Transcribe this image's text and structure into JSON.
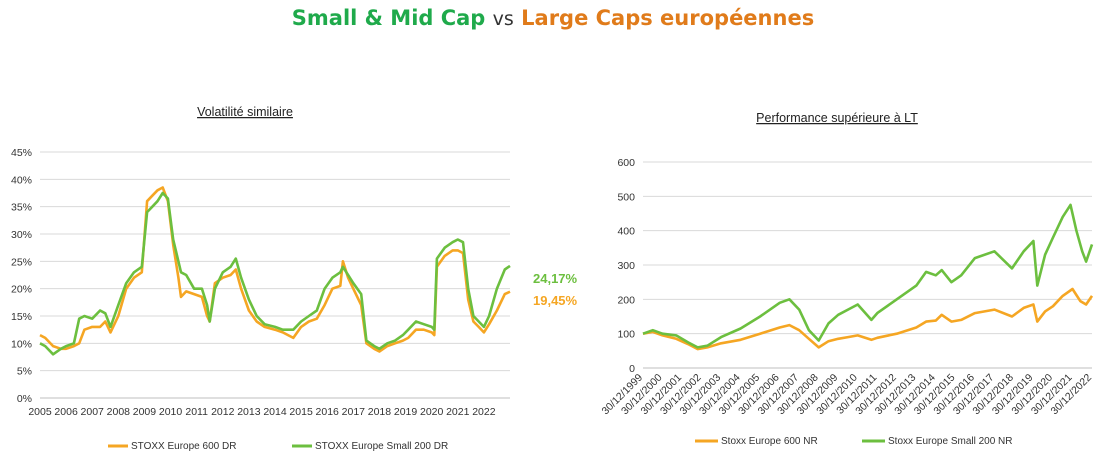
{
  "header": {
    "title_part1": "Small & Mid Cap",
    "title_vs": "vs",
    "title_part2": "Large Caps européennes"
  },
  "colors": {
    "green": "#6cbf3f",
    "orange": "#f5a623",
    "title_green": "#1faa4b",
    "title_orange": "#e07b1a"
  },
  "chart_data": [
    {
      "type": "line",
      "title": "Volatilité similaire",
      "ylim": [
        0,
        45
      ],
      "yticks": [
        "0%",
        "5%",
        "10%",
        "15%",
        "20%",
        "25%",
        "30%",
        "35%",
        "40%",
        "45%"
      ],
      "xticks": [
        "2005",
        "2006",
        "2007",
        "2008",
        "2009",
        "2010",
        "2011",
        "2012",
        "2013",
        "2014",
        "2015",
        "2016",
        "2017",
        "2018",
        "2019",
        "2020",
        "2021",
        "2022"
      ],
      "xlim": [
        2005,
        2023
      ],
      "grid": true,
      "legend": "bottom",
      "end_labels": [
        "24,17%",
        "19,45%"
      ],
      "series": [
        {
          "name": "STOXX Europe 600 DR",
          "color": "#f5a623",
          "points": [
            [
              2005.0,
              11.5
            ],
            [
              2005.2,
              11.0
            ],
            [
              2005.5,
              9.5
            ],
            [
              2005.8,
              9.0
            ],
            [
              2006.0,
              9.0
            ],
            [
              2006.3,
              9.5
            ],
            [
              2006.5,
              10.0
            ],
            [
              2006.7,
              12.5
            ],
            [
              2007.0,
              13.0
            ],
            [
              2007.3,
              13.0
            ],
            [
              2007.5,
              14.0
            ],
            [
              2007.7,
              12.0
            ],
            [
              2008.0,
              15.0
            ],
            [
              2008.3,
              20.0
            ],
            [
              2008.6,
              22.0
            ],
            [
              2008.9,
              23.0
            ],
            [
              2009.1,
              36.0
            ],
            [
              2009.3,
              37.0
            ],
            [
              2009.5,
              38.0
            ],
            [
              2009.7,
              38.5
            ],
            [
              2009.9,
              36.0
            ],
            [
              2010.1,
              28.0
            ],
            [
              2010.3,
              22.0
            ],
            [
              2010.4,
              18.5
            ],
            [
              2010.6,
              19.5
            ],
            [
              2010.9,
              19.0
            ],
            [
              2011.2,
              18.5
            ],
            [
              2011.4,
              15.0
            ],
            [
              2011.5,
              14.0
            ],
            [
              2011.7,
              21.0
            ],
            [
              2012.0,
              22.0
            ],
            [
              2012.3,
              22.5
            ],
            [
              2012.5,
              23.5
            ],
            [
              2012.7,
              20.0
            ],
            [
              2013.0,
              16.0
            ],
            [
              2013.3,
              14.0
            ],
            [
              2013.6,
              13.0
            ],
            [
              2014.0,
              12.5
            ],
            [
              2014.3,
              12.0
            ],
            [
              2014.7,
              11.0
            ],
            [
              2015.0,
              13.0
            ],
            [
              2015.3,
              14.0
            ],
            [
              2015.6,
              14.5
            ],
            [
              2015.9,
              17.0
            ],
            [
              2016.2,
              20.0
            ],
            [
              2016.5,
              20.5
            ],
            [
              2016.6,
              25.0
            ],
            [
              2016.8,
              22.0
            ],
            [
              2017.0,
              20.0
            ],
            [
              2017.3,
              17.0
            ],
            [
              2017.5,
              10.0
            ],
            [
              2017.8,
              9.0
            ],
            [
              2018.0,
              8.5
            ],
            [
              2018.3,
              9.5
            ],
            [
              2018.6,
              10.0
            ],
            [
              2018.9,
              10.5
            ],
            [
              2019.1,
              11.0
            ],
            [
              2019.4,
              12.5
            ],
            [
              2019.7,
              12.5
            ],
            [
              2020.0,
              12.0
            ],
            [
              2020.1,
              11.5
            ],
            [
              2020.2,
              24.0
            ],
            [
              2020.5,
              26.0
            ],
            [
              2020.8,
              27.0
            ],
            [
              2021.0,
              27.0
            ],
            [
              2021.2,
              26.5
            ],
            [
              2021.4,
              18.0
            ],
            [
              2021.6,
              14.0
            ],
            [
              2021.8,
              13.0
            ],
            [
              2022.0,
              12.0
            ],
            [
              2022.2,
              13.5
            ],
            [
              2022.5,
              16.0
            ],
            [
              2022.8,
              19.0
            ],
            [
              2023.0,
              19.45
            ]
          ]
        },
        {
          "name": "STOXX Europe Small 200 DR",
          "color": "#6cbf3f",
          "points": [
            [
              2005.0,
              10.0
            ],
            [
              2005.2,
              9.5
            ],
            [
              2005.5,
              8.0
            ],
            [
              2005.8,
              9.0
            ],
            [
              2006.0,
              9.5
            ],
            [
              2006.3,
              10.0
            ],
            [
              2006.5,
              14.5
            ],
            [
              2006.7,
              15.0
            ],
            [
              2007.0,
              14.5
            ],
            [
              2007.3,
              16.0
            ],
            [
              2007.5,
              15.5
            ],
            [
              2007.7,
              13.0
            ],
            [
              2008.0,
              17.0
            ],
            [
              2008.3,
              21.0
            ],
            [
              2008.6,
              23.0
            ],
            [
              2008.9,
              24.0
            ],
            [
              2009.1,
              34.0
            ],
            [
              2009.3,
              35.0
            ],
            [
              2009.5,
              36.0
            ],
            [
              2009.7,
              37.5
            ],
            [
              2009.9,
              36.5
            ],
            [
              2010.1,
              29.0
            ],
            [
              2010.3,
              25.0
            ],
            [
              2010.4,
              23.0
            ],
            [
              2010.6,
              22.5
            ],
            [
              2010.9,
              20.0
            ],
            [
              2011.2,
              20.0
            ],
            [
              2011.4,
              17.0
            ],
            [
              2011.5,
              14.0
            ],
            [
              2011.7,
              20.0
            ],
            [
              2012.0,
              23.0
            ],
            [
              2012.3,
              24.0
            ],
            [
              2012.5,
              25.5
            ],
            [
              2012.7,
              22.0
            ],
            [
              2013.0,
              18.0
            ],
            [
              2013.3,
              15.0
            ],
            [
              2013.6,
              13.5
            ],
            [
              2014.0,
              13.0
            ],
            [
              2014.3,
              12.5
            ],
            [
              2014.7,
              12.5
            ],
            [
              2015.0,
              14.0
            ],
            [
              2015.3,
              15.0
            ],
            [
              2015.6,
              16.0
            ],
            [
              2015.9,
              20.0
            ],
            [
              2016.2,
              22.0
            ],
            [
              2016.5,
              23.0
            ],
            [
              2016.6,
              24.0
            ],
            [
              2016.8,
              22.5
            ],
            [
              2017.0,
              21.0
            ],
            [
              2017.3,
              19.0
            ],
            [
              2017.5,
              10.5
            ],
            [
              2017.8,
              9.5
            ],
            [
              2018.0,
              9.0
            ],
            [
              2018.3,
              10.0
            ],
            [
              2018.6,
              10.5
            ],
            [
              2018.9,
              11.5
            ],
            [
              2019.1,
              12.5
            ],
            [
              2019.4,
              14.0
            ],
            [
              2019.7,
              13.5
            ],
            [
              2020.0,
              13.0
            ],
            [
              2020.1,
              12.5
            ],
            [
              2020.2,
              25.5
            ],
            [
              2020.5,
              27.5
            ],
            [
              2020.8,
              28.5
            ],
            [
              2021.0,
              29.0
            ],
            [
              2021.2,
              28.5
            ],
            [
              2021.4,
              20.0
            ],
            [
              2021.6,
              15.0
            ],
            [
              2021.8,
              14.0
            ],
            [
              2022.0,
              13.0
            ],
            [
              2022.2,
              15.0
            ],
            [
              2022.5,
              20.0
            ],
            [
              2022.8,
              23.5
            ],
            [
              2023.0,
              24.17
            ]
          ]
        }
      ]
    },
    {
      "type": "line",
      "title": "Performance supérieure à LT",
      "ylim": [
        0,
        600
      ],
      "yticks": [
        "0",
        "100",
        "200",
        "300",
        "400",
        "500",
        "600"
      ],
      "xticks": [
        "30/12/1999",
        "30/12/2000",
        "30/12/2001",
        "30/12/2002",
        "30/12/2003",
        "30/12/2004",
        "30/12/2005",
        "30/12/2006",
        "30/12/2007",
        "30/12/2008",
        "30/12/2009",
        "30/12/2010",
        "30/12/2011",
        "30/12/2012",
        "30/12/2013",
        "30/12/2014",
        "30/12/2015",
        "30/12/2016",
        "30/12/2017",
        "30/12/2018",
        "30/12/2019",
        "30/12/2020",
        "30/12/2021",
        "30/12/2022"
      ],
      "xlim": [
        2000,
        2023
      ],
      "grid": true,
      "legend": "bottom",
      "series": [
        {
          "name": "Stoxx Europe 600 NR",
          "color": "#f5a623",
          "points": [
            [
              2000.0,
              100
            ],
            [
              2000.5,
              105
            ],
            [
              2001.0,
              95
            ],
            [
              2001.7,
              85
            ],
            [
              2002.3,
              70
            ],
            [
              2002.8,
              55
            ],
            [
              2003.3,
              60
            ],
            [
              2004.0,
              72
            ],
            [
              2005.0,
              82
            ],
            [
              2006.0,
              100
            ],
            [
              2007.0,
              118
            ],
            [
              2007.5,
              125
            ],
            [
              2008.0,
              110
            ],
            [
              2008.5,
              85
            ],
            [
              2009.0,
              60
            ],
            [
              2009.5,
              78
            ],
            [
              2010.0,
              85
            ],
            [
              2010.5,
              90
            ],
            [
              2011.0,
              95
            ],
            [
              2011.7,
              82
            ],
            [
              2012.0,
              88
            ],
            [
              2013.0,
              100
            ],
            [
              2014.0,
              118
            ],
            [
              2014.5,
              135
            ],
            [
              2015.0,
              138
            ],
            [
              2015.3,
              155
            ],
            [
              2015.8,
              135
            ],
            [
              2016.3,
              140
            ],
            [
              2017.0,
              160
            ],
            [
              2018.0,
              170
            ],
            [
              2018.9,
              150
            ],
            [
              2019.5,
              175
            ],
            [
              2020.0,
              185
            ],
            [
              2020.2,
              135
            ],
            [
              2020.6,
              165
            ],
            [
              2021.0,
              180
            ],
            [
              2021.5,
              210
            ],
            [
              2022.0,
              230
            ],
            [
              2022.4,
              195
            ],
            [
              2022.7,
              185
            ],
            [
              2023.0,
              210
            ]
          ]
        },
        {
          "name": "Stoxx Europe Small 200 NR",
          "color": "#6cbf3f",
          "points": [
            [
              2000.0,
              100
            ],
            [
              2000.5,
              110
            ],
            [
              2001.0,
              100
            ],
            [
              2001.7,
              95
            ],
            [
              2002.3,
              75
            ],
            [
              2002.8,
              60
            ],
            [
              2003.3,
              65
            ],
            [
              2004.0,
              90
            ],
            [
              2005.0,
              115
            ],
            [
              2006.0,
              150
            ],
            [
              2007.0,
              190
            ],
            [
              2007.5,
              200
            ],
            [
              2008.0,
              170
            ],
            [
              2008.5,
              110
            ],
            [
              2009.0,
              80
            ],
            [
              2009.5,
              130
            ],
            [
              2010.0,
              155
            ],
            [
              2010.5,
              170
            ],
            [
              2011.0,
              185
            ],
            [
              2011.7,
              140
            ],
            [
              2012.0,
              160
            ],
            [
              2013.0,
              200
            ],
            [
              2014.0,
              240
            ],
            [
              2014.5,
              280
            ],
            [
              2015.0,
              270
            ],
            [
              2015.3,
              285
            ],
            [
              2015.8,
              250
            ],
            [
              2016.3,
              270
            ],
            [
              2017.0,
              320
            ],
            [
              2018.0,
              340
            ],
            [
              2018.9,
              290
            ],
            [
              2019.5,
              340
            ],
            [
              2020.0,
              370
            ],
            [
              2020.2,
              240
            ],
            [
              2020.6,
              330
            ],
            [
              2021.0,
              380
            ],
            [
              2021.5,
              440
            ],
            [
              2021.9,
              475
            ],
            [
              2022.2,
              400
            ],
            [
              2022.5,
              340
            ],
            [
              2022.7,
              310
            ],
            [
              2023.0,
              360
            ]
          ]
        }
      ]
    }
  ]
}
